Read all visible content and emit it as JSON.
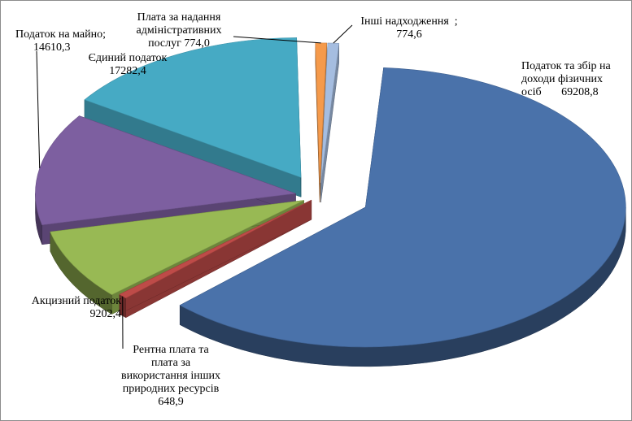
{
  "chart_data": {
    "type": "pie",
    "title": "",
    "slices": [
      {
        "label": "Податок та збір на доходи фізичних осіб",
        "value": 69208.8,
        "value_text": "69208,8",
        "color": "#4a72aa",
        "label_lines": [
          "Податок та збір на",
          "доходи фізичних",
          "осіб       69208,8"
        ]
      },
      {
        "label": "Рентна плата та плата за використання інших природних ресурсів",
        "value": 648.9,
        "value_text": "648,9",
        "color": "#be4b48",
        "label_lines": [
          "Рентна плата та",
          "плата за",
          "використання інших",
          "природних ресурсів",
          "648,9"
        ]
      },
      {
        "label": "Акцизний податок",
        "value": 9202.4,
        "value_text": "9202,4",
        "color": "#98b954",
        "label_lines": [
          "Акцизний податок",
          "9202,4"
        ]
      },
      {
        "label": "Податок на майно;",
        "value": 14610.3,
        "value_text": "14610,3",
        "color": "#7d5fa0",
        "label_lines": [
          "Податок на майно;",
          "14610,3"
        ]
      },
      {
        "label": "Єдиний податок",
        "value": 17282.4,
        "value_text": "17282,4",
        "color": "#46aac4",
        "label_lines": [
          "Єдиний податок",
          "17282,4"
        ]
      },
      {
        "label": "Плата за надання адміністративних послуг",
        "value": 774.0,
        "value_text": "774,0",
        "color": "#f59a4b",
        "label_lines": [
          "Плата за надання",
          "адміністративних",
          "послуг 774,0"
        ]
      },
      {
        "label": "Інші надходження",
        "value": 774.6,
        "value_text": "774,6",
        "color": "#a5bde0",
        "label_lines": [
          "Інші надходження  ;",
          "774,6"
        ]
      }
    ]
  }
}
